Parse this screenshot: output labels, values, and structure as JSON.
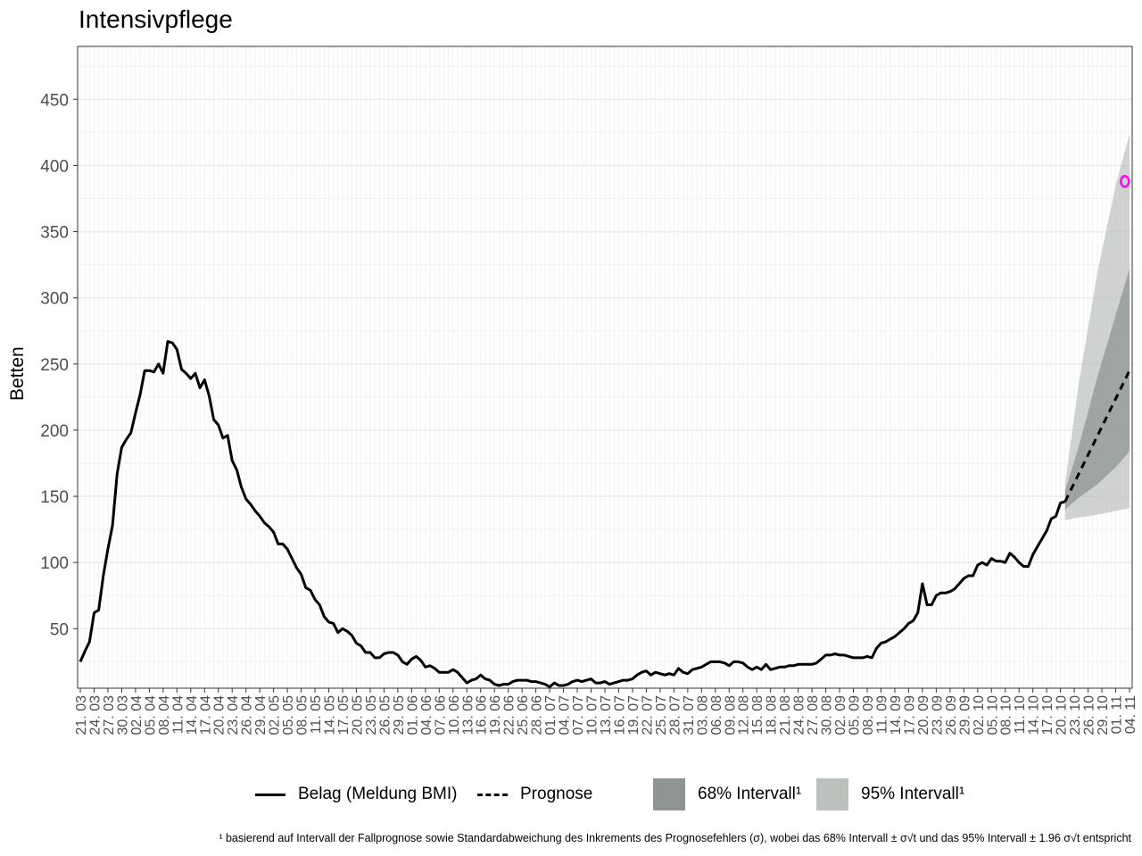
{
  "title": "Intensivpflege",
  "ylabel": "Betten",
  "footnote": "¹ basierend auf Intervall der Fallprognose sowie Standardabweichung des Inkrements des Prognosefehlers (σ), wobei das 68% Intervall ± σ√t und das 95% Intervall ± 1.96 σ√t entspricht",
  "legend": {
    "actual": "Belag (Meldung BMI)",
    "forecast": "Prognose",
    "ci68": "68% Intervall¹",
    "ci95": "95% Intervall¹"
  },
  "colors": {
    "actual": "#000000",
    "ci68": "#8e9592",
    "ci95": "#bcc1be",
    "marker": "#ff00ff",
    "grid": "#ebebeb"
  },
  "chart_data": {
    "type": "line",
    "xlabel": "",
    "ylabel": "Betten",
    "title": "Intensivpflege",
    "ylim": [
      5,
      490
    ],
    "yticks": [
      50,
      100,
      150,
      200,
      250,
      300,
      350,
      400,
      450
    ],
    "x_start": "2020-03-21",
    "x_end": "2020-11-04",
    "xticks": [
      "21. 03",
      "24. 03",
      "27. 03",
      "30. 03",
      "02. 04",
      "05. 04",
      "08. 04",
      "11. 04",
      "14. 04",
      "17. 04",
      "20. 04",
      "23. 04",
      "26. 04",
      "29. 04",
      "02. 05",
      "05. 05",
      "08. 05",
      "11. 05",
      "14. 05",
      "17. 05",
      "20. 05",
      "23. 05",
      "26. 05",
      "29. 05",
      "01. 06",
      "04. 06",
      "07. 06",
      "10. 06",
      "13. 06",
      "16. 06",
      "19. 06",
      "22. 06",
      "25. 06",
      "28. 06",
      "01. 07",
      "04. 07",
      "07. 07",
      "10. 07",
      "13. 07",
      "16. 07",
      "19. 07",
      "22. 07",
      "25. 07",
      "28. 07",
      "31. 07",
      "03. 08",
      "06. 08",
      "09. 08",
      "12. 08",
      "15. 08",
      "18. 08",
      "21. 08",
      "24. 08",
      "27. 08",
      "30. 08",
      "02. 09",
      "05. 09",
      "08. 09",
      "11. 09",
      "14. 09",
      "17. 09",
      "20. 09",
      "23. 09",
      "26. 09",
      "29. 09",
      "02. 10",
      "05. 10",
      "08. 10",
      "11. 10",
      "14. 10",
      "17. 10",
      "20. 10",
      "23. 10",
      "26. 10",
      "29. 10",
      "01. 11",
      "04. 11"
    ],
    "series": [
      {
        "name": "Belag (Meldung BMI)",
        "style": "solid",
        "points": [
          [
            "2020-03-21",
            25
          ],
          [
            "2020-03-22",
            33
          ],
          [
            "2020-03-23",
            40
          ],
          [
            "2020-03-24",
            62
          ],
          [
            "2020-03-25",
            64
          ],
          [
            "2020-03-26",
            90
          ],
          [
            "2020-03-27",
            110
          ],
          [
            "2020-03-28",
            128
          ],
          [
            "2020-03-29",
            167
          ],
          [
            "2020-03-30",
            187
          ],
          [
            "2020-03-31",
            193
          ],
          [
            "2020-04-01",
            198
          ],
          [
            "2020-04-02",
            213
          ],
          [
            "2020-04-03",
            227
          ],
          [
            "2020-04-04",
            245
          ],
          [
            "2020-04-05",
            245
          ],
          [
            "2020-04-06",
            244
          ],
          [
            "2020-04-07",
            250
          ],
          [
            "2020-04-08",
            243
          ],
          [
            "2020-04-09",
            267
          ],
          [
            "2020-04-10",
            266
          ],
          [
            "2020-04-11",
            261
          ],
          [
            "2020-04-12",
            246
          ],
          [
            "2020-04-13",
            243
          ],
          [
            "2020-04-14",
            239
          ],
          [
            "2020-04-15",
            243
          ],
          [
            "2020-04-16",
            232
          ],
          [
            "2020-04-17",
            238
          ],
          [
            "2020-04-18",
            226
          ],
          [
            "2020-04-19",
            208
          ],
          [
            "2020-04-20",
            204
          ],
          [
            "2020-04-21",
            194
          ],
          [
            "2020-04-22",
            196
          ],
          [
            "2020-04-23",
            177
          ],
          [
            "2020-04-24",
            170
          ],
          [
            "2020-04-25",
            157
          ],
          [
            "2020-04-26",
            148
          ],
          [
            "2020-04-27",
            144
          ],
          [
            "2020-04-28",
            139
          ],
          [
            "2020-04-29",
            135
          ],
          [
            "2020-04-30",
            130
          ],
          [
            "2020-05-01",
            127
          ],
          [
            "2020-05-02",
            123
          ],
          [
            "2020-05-03",
            114
          ],
          [
            "2020-05-04",
            114
          ],
          [
            "2020-05-05",
            110
          ],
          [
            "2020-05-06",
            103
          ],
          [
            "2020-05-07",
            96
          ],
          [
            "2020-05-08",
            91
          ],
          [
            "2020-05-09",
            81
          ],
          [
            "2020-05-10",
            79
          ],
          [
            "2020-05-11",
            72
          ],
          [
            "2020-05-12",
            68
          ],
          [
            "2020-05-13",
            59
          ],
          [
            "2020-05-14",
            55
          ],
          [
            "2020-05-15",
            54
          ],
          [
            "2020-05-16",
            47
          ],
          [
            "2020-05-17",
            50
          ],
          [
            "2020-05-18",
            48
          ],
          [
            "2020-05-19",
            45
          ],
          [
            "2020-05-20",
            39
          ],
          [
            "2020-05-21",
            37
          ],
          [
            "2020-05-22",
            32
          ],
          [
            "2020-05-23",
            32
          ],
          [
            "2020-05-24",
            28
          ],
          [
            "2020-05-25",
            28
          ],
          [
            "2020-05-26",
            31
          ],
          [
            "2020-05-27",
            32
          ],
          [
            "2020-05-28",
            32
          ],
          [
            "2020-05-29",
            30
          ],
          [
            "2020-05-30",
            25
          ],
          [
            "2020-05-31",
            23
          ],
          [
            "2020-06-01",
            27
          ],
          [
            "2020-06-02",
            29
          ],
          [
            "2020-06-03",
            26
          ],
          [
            "2020-06-04",
            21
          ],
          [
            "2020-06-05",
            22
          ],
          [
            "2020-06-06",
            20
          ],
          [
            "2020-06-07",
            17
          ],
          [
            "2020-06-08",
            17
          ],
          [
            "2020-06-09",
            17
          ],
          [
            "2020-06-10",
            19
          ],
          [
            "2020-06-11",
            17
          ],
          [
            "2020-06-12",
            13
          ],
          [
            "2020-06-13",
            9
          ],
          [
            "2020-06-14",
            11
          ],
          [
            "2020-06-15",
            12
          ],
          [
            "2020-06-16",
            15
          ],
          [
            "2020-06-17",
            12
          ],
          [
            "2020-06-18",
            11
          ],
          [
            "2020-06-19",
            8
          ],
          [
            "2020-06-20",
            7
          ],
          [
            "2020-06-21",
            8
          ],
          [
            "2020-06-22",
            8
          ],
          [
            "2020-06-23",
            10
          ],
          [
            "2020-06-24",
            11
          ],
          [
            "2020-06-25",
            11
          ],
          [
            "2020-06-26",
            11
          ],
          [
            "2020-06-27",
            10
          ],
          [
            "2020-06-28",
            10
          ],
          [
            "2020-06-29",
            9
          ],
          [
            "2020-06-30",
            8
          ],
          [
            "2020-07-01",
            6
          ],
          [
            "2020-07-02",
            9
          ],
          [
            "2020-07-03",
            7
          ],
          [
            "2020-07-04",
            7
          ],
          [
            "2020-07-05",
            8
          ],
          [
            "2020-07-06",
            10
          ],
          [
            "2020-07-07",
            11
          ],
          [
            "2020-07-08",
            10
          ],
          [
            "2020-07-09",
            11
          ],
          [
            "2020-07-10",
            12
          ],
          [
            "2020-07-11",
            9
          ],
          [
            "2020-07-12",
            9
          ],
          [
            "2020-07-13",
            10
          ],
          [
            "2020-07-14",
            8
          ],
          [
            "2020-07-15",
            9
          ],
          [
            "2020-07-16",
            10
          ],
          [
            "2020-07-17",
            11
          ],
          [
            "2020-07-18",
            11
          ],
          [
            "2020-07-19",
            12
          ],
          [
            "2020-07-20",
            15
          ],
          [
            "2020-07-21",
            17
          ],
          [
            "2020-07-22",
            18
          ],
          [
            "2020-07-23",
            15
          ],
          [
            "2020-07-24",
            17
          ],
          [
            "2020-07-25",
            16
          ],
          [
            "2020-07-26",
            15
          ],
          [
            "2020-07-27",
            16
          ],
          [
            "2020-07-28",
            15
          ],
          [
            "2020-07-29",
            20
          ],
          [
            "2020-07-30",
            17
          ],
          [
            "2020-07-31",
            16
          ],
          [
            "2020-08-01",
            19
          ],
          [
            "2020-08-02",
            20
          ],
          [
            "2020-08-03",
            21
          ],
          [
            "2020-08-04",
            23
          ],
          [
            "2020-08-05",
            25
          ],
          [
            "2020-08-06",
            25
          ],
          [
            "2020-08-07",
            25
          ],
          [
            "2020-08-08",
            24
          ],
          [
            "2020-08-09",
            22
          ],
          [
            "2020-08-10",
            25
          ],
          [
            "2020-08-11",
            25
          ],
          [
            "2020-08-12",
            24
          ],
          [
            "2020-08-13",
            21
          ],
          [
            "2020-08-14",
            19
          ],
          [
            "2020-08-15",
            21
          ],
          [
            "2020-08-16",
            19
          ],
          [
            "2020-08-17",
            23
          ],
          [
            "2020-08-18",
            19
          ],
          [
            "2020-08-19",
            20
          ],
          [
            "2020-08-20",
            21
          ],
          [
            "2020-08-21",
            21
          ],
          [
            "2020-08-22",
            22
          ],
          [
            "2020-08-23",
            22
          ],
          [
            "2020-08-24",
            23
          ],
          [
            "2020-08-25",
            23
          ],
          [
            "2020-08-26",
            23
          ],
          [
            "2020-08-27",
            23
          ],
          [
            "2020-08-28",
            24
          ],
          [
            "2020-08-29",
            27
          ],
          [
            "2020-08-30",
            30
          ],
          [
            "2020-08-31",
            30
          ],
          [
            "2020-09-01",
            31
          ],
          [
            "2020-09-02",
            30
          ],
          [
            "2020-09-03",
            30
          ],
          [
            "2020-09-04",
            29
          ],
          [
            "2020-09-05",
            28
          ],
          [
            "2020-09-06",
            28
          ],
          [
            "2020-09-07",
            28
          ],
          [
            "2020-09-08",
            29
          ],
          [
            "2020-09-09",
            28
          ],
          [
            "2020-09-10",
            35
          ],
          [
            "2020-09-11",
            39
          ],
          [
            "2020-09-12",
            40
          ],
          [
            "2020-09-13",
            42
          ],
          [
            "2020-09-14",
            44
          ],
          [
            "2020-09-15",
            47
          ],
          [
            "2020-09-16",
            50
          ],
          [
            "2020-09-17",
            54
          ],
          [
            "2020-09-18",
            56
          ],
          [
            "2020-09-19",
            62
          ],
          [
            "2020-09-20",
            84
          ],
          [
            "2020-09-21",
            68
          ],
          [
            "2020-09-22",
            68
          ],
          [
            "2020-09-23",
            75
          ],
          [
            "2020-09-24",
            77
          ],
          [
            "2020-09-25",
            77
          ],
          [
            "2020-09-26",
            78
          ],
          [
            "2020-09-27",
            80
          ],
          [
            "2020-09-28",
            84
          ],
          [
            "2020-09-29",
            88
          ],
          [
            "2020-09-30",
            90
          ],
          [
            "2020-10-01",
            90
          ],
          [
            "2020-10-02",
            98
          ],
          [
            "2020-10-03",
            100
          ],
          [
            "2020-10-04",
            98
          ],
          [
            "2020-10-05",
            103
          ],
          [
            "2020-10-06",
            101
          ],
          [
            "2020-10-07",
            101
          ],
          [
            "2020-10-08",
            100
          ],
          [
            "2020-10-09",
            107
          ],
          [
            "2020-10-10",
            104
          ],
          [
            "2020-10-11",
            100
          ],
          [
            "2020-10-12",
            97
          ],
          [
            "2020-10-13",
            97
          ],
          [
            "2020-10-14",
            106
          ],
          [
            "2020-10-15",
            112
          ],
          [
            "2020-10-16",
            118
          ],
          [
            "2020-10-17",
            124
          ],
          [
            "2020-10-18",
            133
          ],
          [
            "2020-10-19",
            135
          ],
          [
            "2020-10-20",
            145
          ],
          [
            "2020-10-21",
            146
          ]
        ]
      },
      {
        "name": "Prognose",
        "style": "dashed",
        "points": [
          [
            "2020-10-21",
            146
          ],
          [
            "2020-11-04",
            245
          ]
        ]
      }
    ],
    "bands": [
      {
        "name": "95% Intervall¹",
        "points": [
          [
            "2020-10-21",
            132,
            160
          ],
          [
            "2020-10-24",
            134,
            236
          ],
          [
            "2020-10-28",
            136,
            319
          ],
          [
            "2020-11-01",
            139,
            385
          ],
          [
            "2020-11-04",
            141,
            424
          ]
        ]
      },
      {
        "name": "68% Intervall¹",
        "points": [
          [
            "2020-10-21",
            140,
            154
          ],
          [
            "2020-10-24",
            149,
            188
          ],
          [
            "2020-10-28",
            159,
            240
          ],
          [
            "2020-11-01",
            172,
            287
          ],
          [
            "2020-11-04",
            184,
            322
          ]
        ]
      }
    ],
    "markers": [
      {
        "x": "2020-11-03",
        "y": 388,
        "shape": "open-circle",
        "color": "#ff00ff"
      }
    ]
  }
}
